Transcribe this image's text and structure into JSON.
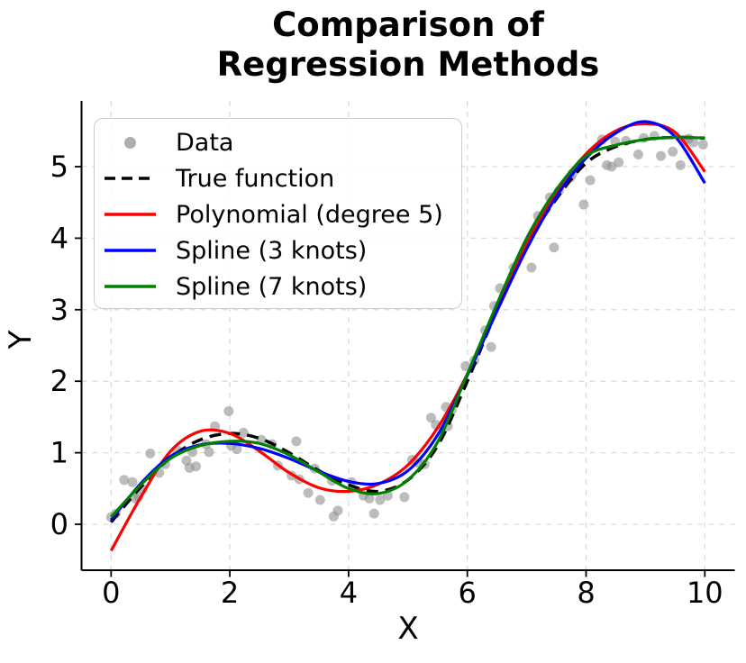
{
  "figure": {
    "background": "#ffffff"
  },
  "title": {
    "line1": "Comparison of",
    "line2": "Regression Methods"
  },
  "axes": {
    "xlabel": "X",
    "ylabel": "Y"
  },
  "legend": {
    "position": "upper left",
    "items": [
      {
        "label": "Data",
        "marker": "dot",
        "color": "#9a9a9a"
      },
      {
        "label": "True function",
        "marker": "dashed-line",
        "color": "#000000"
      },
      {
        "label": "Polynomial (degree 5)",
        "marker": "line",
        "color": "#ff0000"
      },
      {
        "label": "Spline (3 knots)",
        "marker": "line",
        "color": "#0000ff"
      },
      {
        "label": "Spline (7 knots)",
        "marker": "line",
        "color": "#008000"
      }
    ]
  },
  "chart_data": {
    "type": "line+scatter",
    "title": "Comparison of Regression Methods",
    "xlabel": "X",
    "ylabel": "Y",
    "xlim": [
      -0.5,
      10.5
    ],
    "ylim": [
      -0.64,
      5.93
    ],
    "x_ticks": [
      0,
      2,
      4,
      6,
      8,
      10
    ],
    "y_ticks": [
      0,
      1,
      2,
      3,
      4,
      5
    ],
    "grid": true,
    "grid_style": "dashed",
    "x": [
      0,
      0.5,
      1,
      1.5,
      2,
      2.5,
      3,
      3.5,
      4,
      4.5,
      5,
      5.5,
      6,
      6.5,
      7,
      7.5,
      8,
      8.5,
      9,
      9.5,
      10
    ],
    "series": [
      {
        "name": "True function",
        "color": "#000000",
        "style": "dashed",
        "y": [
          0.03,
          0.52,
          0.93,
          1.18,
          1.27,
          1.2,
          1.0,
          0.75,
          0.55,
          0.46,
          0.62,
          1.1,
          2.0,
          3.0,
          3.9,
          4.55,
          5.05,
          5.28,
          5.38,
          5.41,
          5.4
        ]
      },
      {
        "name": "Polynomial (degree 5)",
        "color": "#ff0000",
        "style": "solid",
        "y": [
          -0.37,
          0.38,
          1.02,
          1.3,
          1.27,
          1.02,
          0.72,
          0.51,
          0.46,
          0.56,
          0.83,
          1.35,
          2.1,
          3.02,
          3.92,
          4.65,
          5.18,
          5.5,
          5.6,
          5.48,
          4.93
        ]
      },
      {
        "name": "Spline (3 knots)",
        "color": "#0000ff",
        "style": "solid",
        "y": [
          0.06,
          0.57,
          0.95,
          1.11,
          1.13,
          1.06,
          0.92,
          0.74,
          0.6,
          0.57,
          0.75,
          1.25,
          2.08,
          2.98,
          3.85,
          4.58,
          5.12,
          5.47,
          5.63,
          5.42,
          4.77
        ]
      },
      {
        "name": "Spline (7 knots)",
        "color": "#008000",
        "style": "solid",
        "y": [
          0.1,
          0.55,
          0.92,
          1.1,
          1.16,
          1.13,
          0.97,
          0.73,
          0.5,
          0.43,
          0.62,
          1.15,
          2.1,
          3.08,
          4.0,
          4.68,
          5.15,
          5.3,
          5.38,
          5.41,
          5.4
        ]
      }
    ],
    "scatter": {
      "name": "Data",
      "color": "#8f8f8f",
      "opacity": 0.6,
      "points": [
        [
          0.0,
          0.1
        ],
        [
          0.08,
          0.15
        ],
        [
          0.22,
          0.62
        ],
        [
          0.36,
          0.59
        ],
        [
          0.41,
          0.36
        ],
        [
          0.46,
          0.38
        ],
        [
          0.53,
          0.49
        ],
        [
          0.66,
          0.99
        ],
        [
          0.81,
          0.72
        ],
        [
          0.91,
          0.84
        ],
        [
          1.12,
          1.03
        ],
        [
          1.27,
          0.89
        ],
        [
          1.32,
          0.79
        ],
        [
          1.37,
          1.01
        ],
        [
          1.43,
          0.81
        ],
        [
          1.6,
          1.12
        ],
        [
          1.65,
          1.01
        ],
        [
          1.75,
          1.37
        ],
        [
          1.98,
          1.58
        ],
        [
          2.02,
          1.1
        ],
        [
          2.12,
          1.05
        ],
        [
          2.23,
          1.28
        ],
        [
          2.53,
          1.18
        ],
        [
          2.71,
          1.12
        ],
        [
          2.81,
          0.82
        ],
        [
          3.04,
          0.68
        ],
        [
          3.12,
          1.16
        ],
        [
          3.17,
          0.63
        ],
        [
          3.32,
          0.44
        ],
        [
          3.43,
          0.78
        ],
        [
          3.52,
          0.34
        ],
        [
          3.72,
          0.61
        ],
        [
          3.75,
          0.11
        ],
        [
          3.82,
          0.19
        ],
        [
          4.05,
          0.59
        ],
        [
          4.25,
          0.4
        ],
        [
          4.35,
          0.36
        ],
        [
          4.43,
          0.15
        ],
        [
          4.53,
          0.34
        ],
        [
          4.66,
          0.4
        ],
        [
          4.94,
          0.38
        ],
        [
          5.07,
          0.9
        ],
        [
          5.17,
          0.86
        ],
        [
          5.28,
          0.84
        ],
        [
          5.39,
          1.49
        ],
        [
          5.47,
          1.39
        ],
        [
          5.64,
          1.64
        ],
        [
          5.67,
          1.37
        ],
        [
          5.74,
          1.6
        ],
        [
          5.97,
          2.21
        ],
        [
          6.12,
          2.29
        ],
        [
          6.3,
          2.71
        ],
        [
          6.4,
          2.48
        ],
        [
          6.45,
          3.05
        ],
        [
          6.55,
          3.3
        ],
        [
          6.78,
          3.59
        ],
        [
          7.08,
          3.59
        ],
        [
          7.19,
          4.31
        ],
        [
          7.39,
          4.57
        ],
        [
          7.46,
          3.87
        ],
        [
          7.54,
          4.66
        ],
        [
          7.74,
          4.85
        ],
        [
          7.77,
          4.9
        ],
        [
          7.96,
          4.47
        ],
        [
          8.07,
          4.81
        ],
        [
          8.27,
          5.38
        ],
        [
          8.35,
          5.02
        ],
        [
          8.43,
          5.0
        ],
        [
          8.49,
          5.35
        ],
        [
          8.55,
          5.06
        ],
        [
          8.67,
          5.36
        ],
        [
          8.88,
          5.17
        ],
        [
          8.97,
          5.4
        ],
        [
          9.15,
          5.43
        ],
        [
          9.26,
          5.15
        ],
        [
          9.46,
          5.21
        ],
        [
          9.59,
          5.02
        ],
        [
          9.66,
          5.36
        ],
        [
          9.73,
          5.39
        ],
        [
          9.81,
          5.34
        ],
        [
          9.97,
          5.31
        ]
      ]
    }
  }
}
